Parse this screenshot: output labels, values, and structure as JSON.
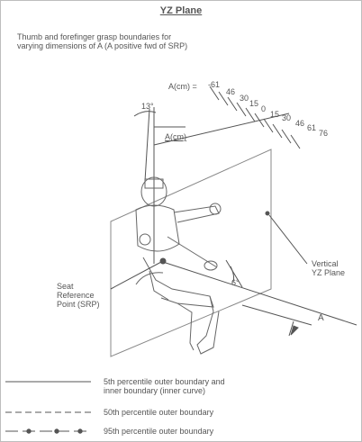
{
  "title": "YZ Plane",
  "description_lines": [
    "Thumb and forefinger grasp boundaries for",
    "varying dimensions of A (A positive fwd of SRP)"
  ],
  "a_scale_label": "A(cm) =",
  "a_scale_values": [
    "-61",
    "46",
    "30",
    "15",
    "0",
    "15",
    "30",
    "46",
    "61",
    "76"
  ],
  "angle_top": "13°",
  "a_vertical_label": "A(cm)",
  "angle_small": "6°",
  "seat_reference_lines": [
    "Seat",
    "Reference",
    "Point (SRP)"
  ],
  "vertical_plane_lines": [
    "Vertical",
    "YZ Plane"
  ],
  "a_axis_label": "A",
  "legend": [
    {
      "style": "solid",
      "lines": [
        "5th percentile outer boundary and",
        "inner boundary (inner curve)"
      ]
    },
    {
      "style": "dashed",
      "lines": [
        "50th percentile outer boundary"
      ]
    },
    {
      "style": "dot-dash",
      "lines": [
        "95th percentile outer boundary"
      ]
    }
  ],
  "colors": {
    "ink": "#555555",
    "frame": "#bdbdbd"
  }
}
